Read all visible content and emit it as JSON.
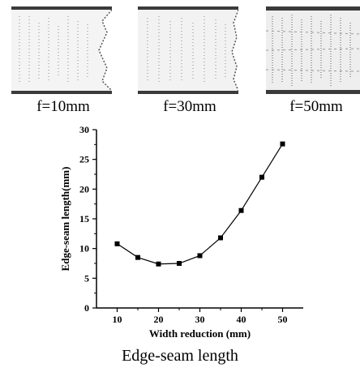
{
  "specimens": [
    {
      "label": "f=10mm"
    },
    {
      "label": "f=30mm"
    },
    {
      "label": "f=50mm"
    }
  ],
  "caption": "Edge-seam length",
  "chart_data": {
    "type": "line",
    "title": "",
    "xlabel": "Width reduction (mm)",
    "ylabel": "Edge-seam length(mm)",
    "x": [
      10,
      15,
      20,
      25,
      30,
      35,
      40,
      45,
      50
    ],
    "series": [
      {
        "name": "",
        "values": [
          10.8,
          8.5,
          7.4,
          7.5,
          8.8,
          11.8,
          16.4,
          22.0,
          27.6
        ]
      }
    ],
    "xlim": [
      5,
      55
    ],
    "ylim": [
      0,
      30
    ],
    "xticks": [
      10,
      20,
      30,
      40,
      50
    ],
    "yticks": [
      0,
      5,
      10,
      15,
      20,
      25,
      30
    ],
    "marker": "square",
    "grid": false,
    "legend": "none",
    "colors": {
      "line": "#000000",
      "marker": "#000000"
    }
  }
}
